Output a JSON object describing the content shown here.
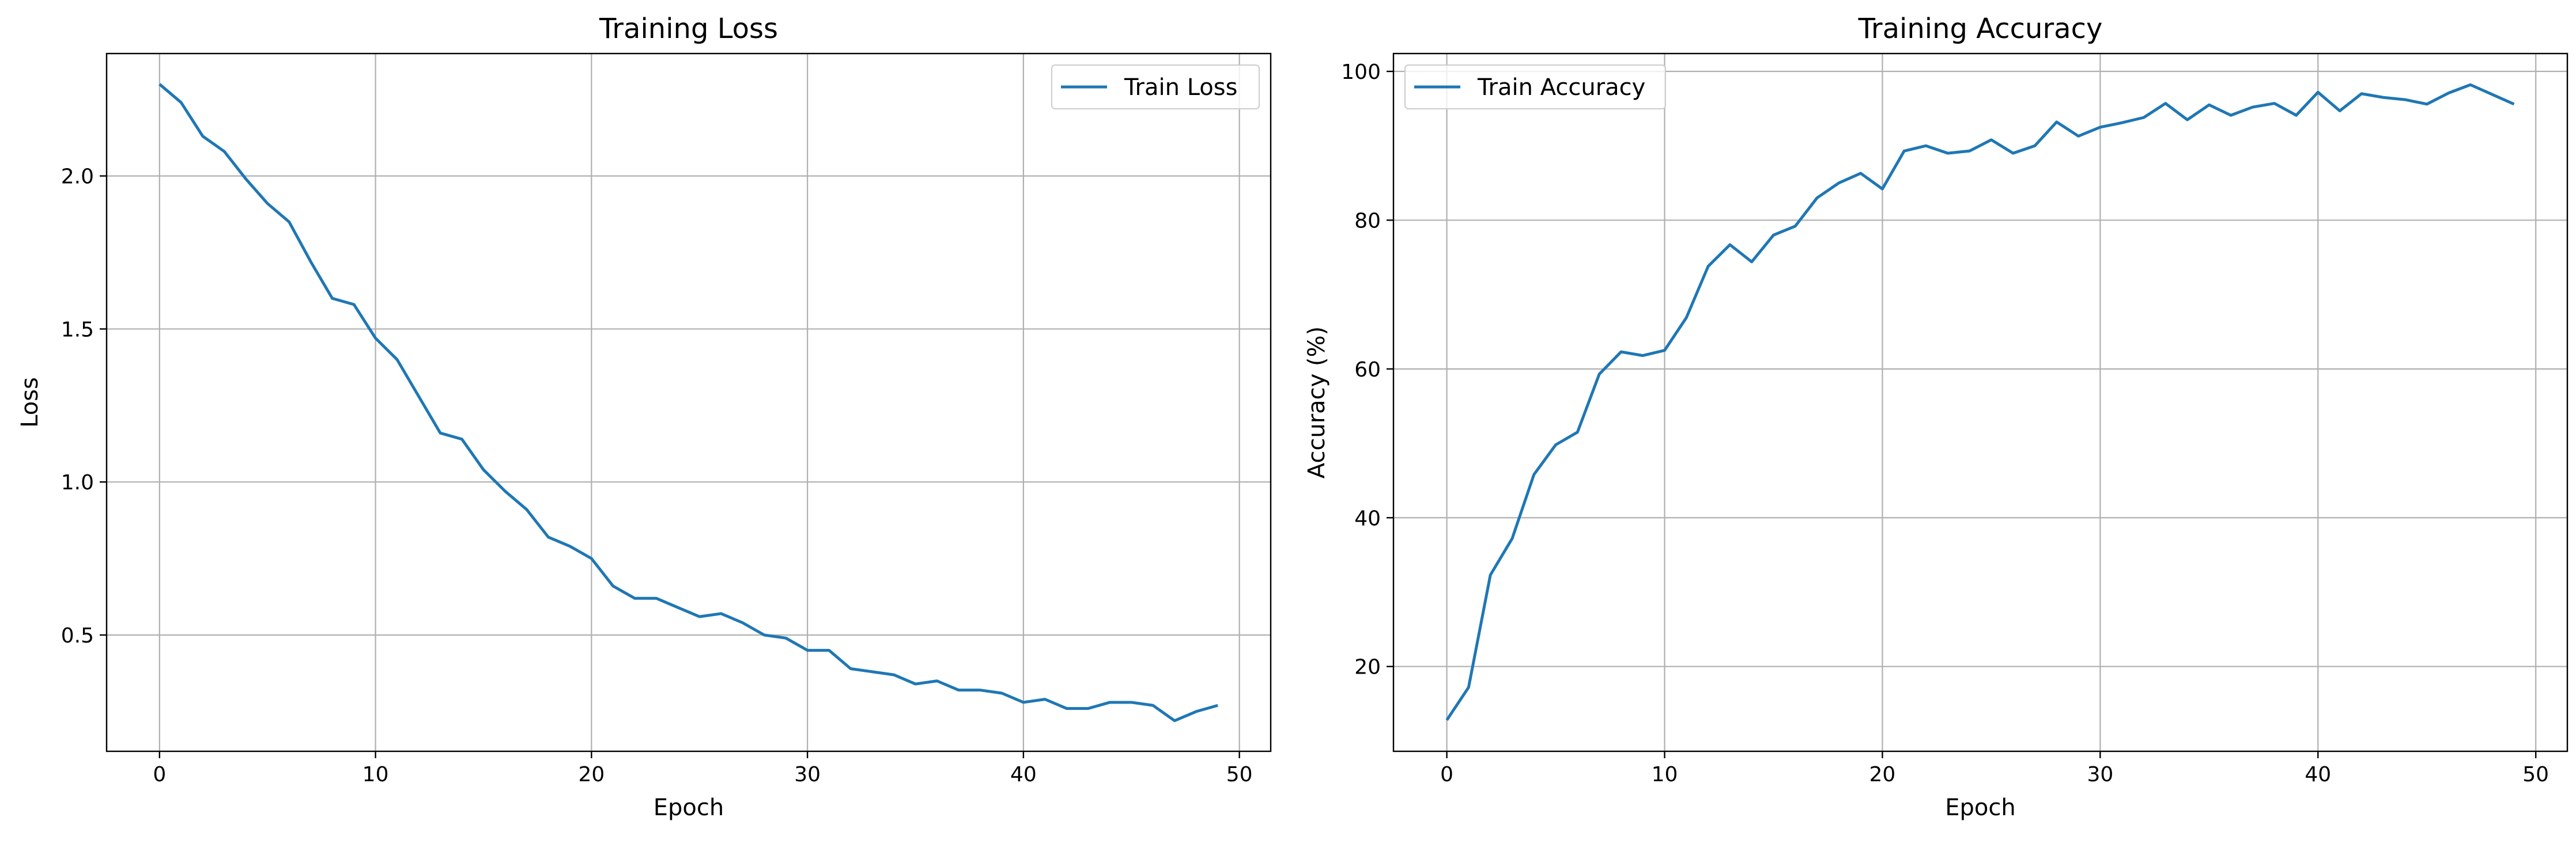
{
  "colors": {
    "series": "#1f77b4",
    "grid": "#b0b0b0",
    "axes": "#000000",
    "legend_border": "#cccccc"
  },
  "chart_data": [
    {
      "type": "line",
      "title": "Training Loss",
      "xlabel": "Epoch",
      "ylabel": "Loss",
      "xlim": [
        -2.45,
        51.45
      ],
      "ylim": [
        0.12,
        2.4
      ],
      "xticks": [
        0,
        10,
        20,
        30,
        40,
        50
      ],
      "xtick_labels": [
        "0",
        "10",
        "20",
        "30",
        "40",
        "50"
      ],
      "yticks": [
        0.5,
        1.0,
        1.5,
        2.0
      ],
      "ytick_labels": [
        "0.5",
        "1.0",
        "1.5",
        "2.0"
      ],
      "grid": true,
      "legend": "upper right",
      "series": [
        {
          "name": "Train Loss",
          "x": [
            0,
            1,
            2,
            3,
            4,
            5,
            6,
            7,
            8,
            9,
            10,
            11,
            12,
            13,
            14,
            15,
            16,
            17,
            18,
            19,
            20,
            21,
            22,
            23,
            24,
            25,
            26,
            27,
            28,
            29,
            30,
            31,
            32,
            33,
            34,
            35,
            36,
            37,
            38,
            39,
            40,
            41,
            42,
            43,
            44,
            45,
            46,
            47,
            48,
            49
          ],
          "values": [
            2.3,
            2.24,
            2.13,
            2.08,
            1.99,
            1.91,
            1.85,
            1.72,
            1.6,
            1.58,
            1.47,
            1.4,
            1.28,
            1.16,
            1.14,
            1.04,
            0.97,
            0.91,
            0.82,
            0.79,
            0.75,
            0.66,
            0.62,
            0.62,
            0.59,
            0.56,
            0.57,
            0.54,
            0.5,
            0.49,
            0.45,
            0.45,
            0.39,
            0.38,
            0.37,
            0.34,
            0.35,
            0.32,
            0.32,
            0.31,
            0.28,
            0.29,
            0.26,
            0.26,
            0.28,
            0.28,
            0.27,
            0.22,
            0.25,
            0.27
          ]
        }
      ]
    },
    {
      "type": "line",
      "title": "Training Accuracy",
      "xlabel": "Epoch",
      "ylabel": "Accuracy (%)",
      "xlim": [
        -2.45,
        51.45
      ],
      "ylim": [
        8.6,
        102.4
      ],
      "xticks": [
        0,
        10,
        20,
        30,
        40,
        50
      ],
      "xtick_labels": [
        "0",
        "10",
        "20",
        "30",
        "40",
        "50"
      ],
      "yticks": [
        20,
        40,
        60,
        80,
        100
      ],
      "ytick_labels": [
        "20",
        "40",
        "60",
        "80",
        "100"
      ],
      "grid": true,
      "legend": "upper left",
      "series": [
        {
          "name": "Train Accuracy",
          "x": [
            0,
            1,
            2,
            3,
            4,
            5,
            6,
            7,
            8,
            9,
            10,
            11,
            12,
            13,
            14,
            15,
            16,
            17,
            18,
            19,
            20,
            21,
            22,
            23,
            24,
            25,
            26,
            27,
            28,
            29,
            30,
            31,
            32,
            33,
            34,
            35,
            36,
            37,
            38,
            39,
            40,
            41,
            42,
            43,
            44,
            45,
            46,
            47,
            48,
            49
          ],
          "values": [
            12.8,
            17.2,
            32.3,
            37.2,
            45.8,
            49.8,
            51.5,
            59.3,
            62.3,
            61.8,
            62.5,
            66.9,
            73.8,
            76.7,
            74.4,
            78.0,
            79.2,
            83.0,
            85.0,
            86.3,
            84.2,
            89.3,
            90.0,
            89.0,
            89.3,
            90.8,
            89.0,
            90.0,
            93.2,
            91.3,
            92.5,
            93.1,
            93.8,
            95.7,
            93.5,
            95.5,
            94.1,
            95.2,
            95.7,
            94.1,
            97.2,
            94.7,
            97.0,
            96.5,
            96.2,
            95.6,
            97.1,
            98.2,
            96.9,
            95.6
          ]
        }
      ]
    }
  ]
}
